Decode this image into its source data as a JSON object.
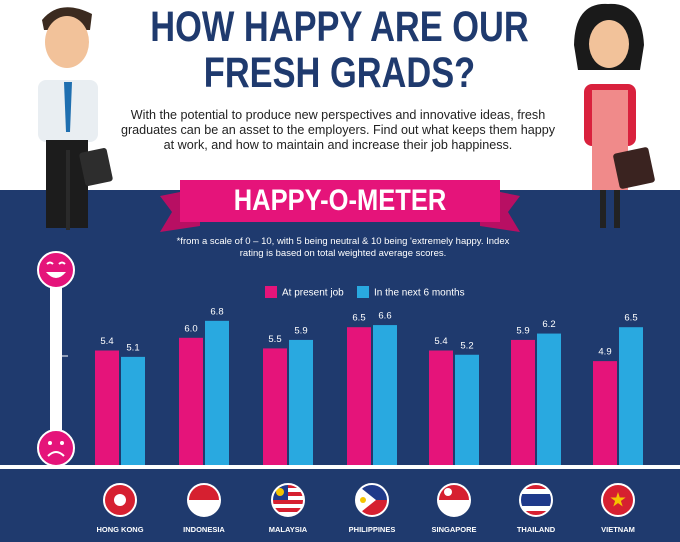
{
  "chart_data": {
    "type": "bar",
    "title": "HOW HAPPY ARE OUR FRESH GRADS?",
    "subtitle": "With the potential to produce new perspectives and innovative ideas, fresh graduates can be an asset to the employers. Find out what keeps them happy at work, and how to maintain and increase their job happiness.",
    "banner": "HAPPY-O-METER",
    "note": "*from a scale of 0 – 10, with 5 being neutral & 10 being 'extremely happy. Index rating is based on total weighted average scores.",
    "categories": [
      "HONG KONG",
      "INDONESIA",
      "MALAYSIA",
      "PHILIPPINES",
      "SINGAPORE",
      "THAILAND",
      "VIETNAM"
    ],
    "series": [
      {
        "name": "At present job",
        "color": "#e5147a",
        "values": [
          5.4,
          6.0,
          5.5,
          6.5,
          5.4,
          5.9,
          4.9
        ],
        "value_labels": [
          "5.4",
          "6.0",
          "5.5",
          "6.5",
          "5.4",
          "5.9",
          "4.9"
        ]
      },
      {
        "name": "In the next 6 months",
        "color": "#29a9e0",
        "values": [
          5.1,
          6.8,
          5.9,
          6.6,
          5.2,
          6.2,
          6.5
        ],
        "value_labels": [
          "5.1",
          "6.8",
          "5.9",
          "6.6",
          "5.2",
          "6.2",
          "6.5"
        ]
      }
    ]
  }
}
